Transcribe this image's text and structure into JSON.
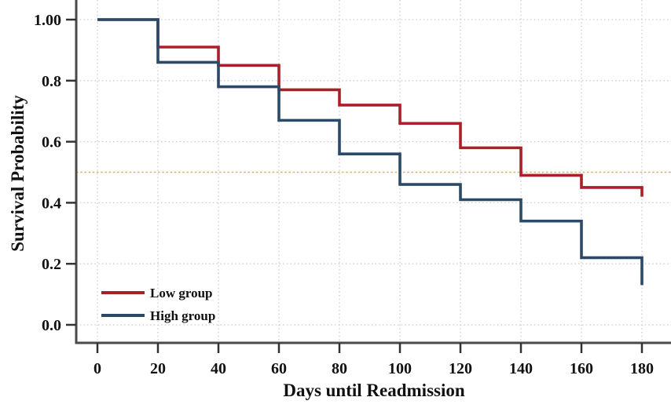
{
  "chart_data": {
    "type": "line",
    "subtype": "kaplan-meier-step-survival",
    "title": "",
    "xlabel": "Days until Readmission",
    "ylabel": "Survival Probability",
    "x_tick_labels": [
      "0",
      "20",
      "40",
      "60",
      "80",
      "100",
      "120",
      "140",
      "160",
      "180"
    ],
    "x_tick_values": [
      0,
      20,
      40,
      60,
      80,
      100,
      120,
      140,
      160,
      180
    ],
    "y_tick_labels": [
      "0.0",
      "0.2",
      "0.4",
      "0.6",
      "0.8",
      "1.00"
    ],
    "y_tick_values": [
      0.0,
      0.2,
      0.4,
      0.6,
      0.8,
      1.0
    ],
    "xlim": [
      0,
      190
    ],
    "ylim": [
      0.0,
      1.06
    ],
    "grid": {
      "style": "dotted",
      "color": "#cbcbcb",
      "vertical": true,
      "horizontal": true
    },
    "reference_line": {
      "y": 0.5,
      "style": "dashed",
      "color": "#d8b84a"
    },
    "axis_color": "#4a4a4a",
    "tick_color": "#333333",
    "legend_position": "lower-left",
    "series": [
      {
        "name": "Low group",
        "color": "#ab1f28",
        "steps": [
          [
            0,
            1.0
          ],
          [
            20,
            0.91
          ],
          [
            40,
            0.85
          ],
          [
            60,
            0.77
          ],
          [
            80,
            0.72
          ],
          [
            100,
            0.66
          ],
          [
            120,
            0.58
          ],
          [
            140,
            0.49
          ],
          [
            160,
            0.45
          ],
          [
            180,
            0.42
          ]
        ]
      },
      {
        "name": "High group",
        "color": "#2b4a68",
        "steps": [
          [
            0,
            1.0
          ],
          [
            20,
            0.86
          ],
          [
            40,
            0.78
          ],
          [
            60,
            0.67
          ],
          [
            80,
            0.56
          ],
          [
            100,
            0.46
          ],
          [
            120,
            0.41
          ],
          [
            140,
            0.34
          ],
          [
            160,
            0.22
          ],
          [
            180,
            0.13
          ]
        ]
      }
    ]
  }
}
